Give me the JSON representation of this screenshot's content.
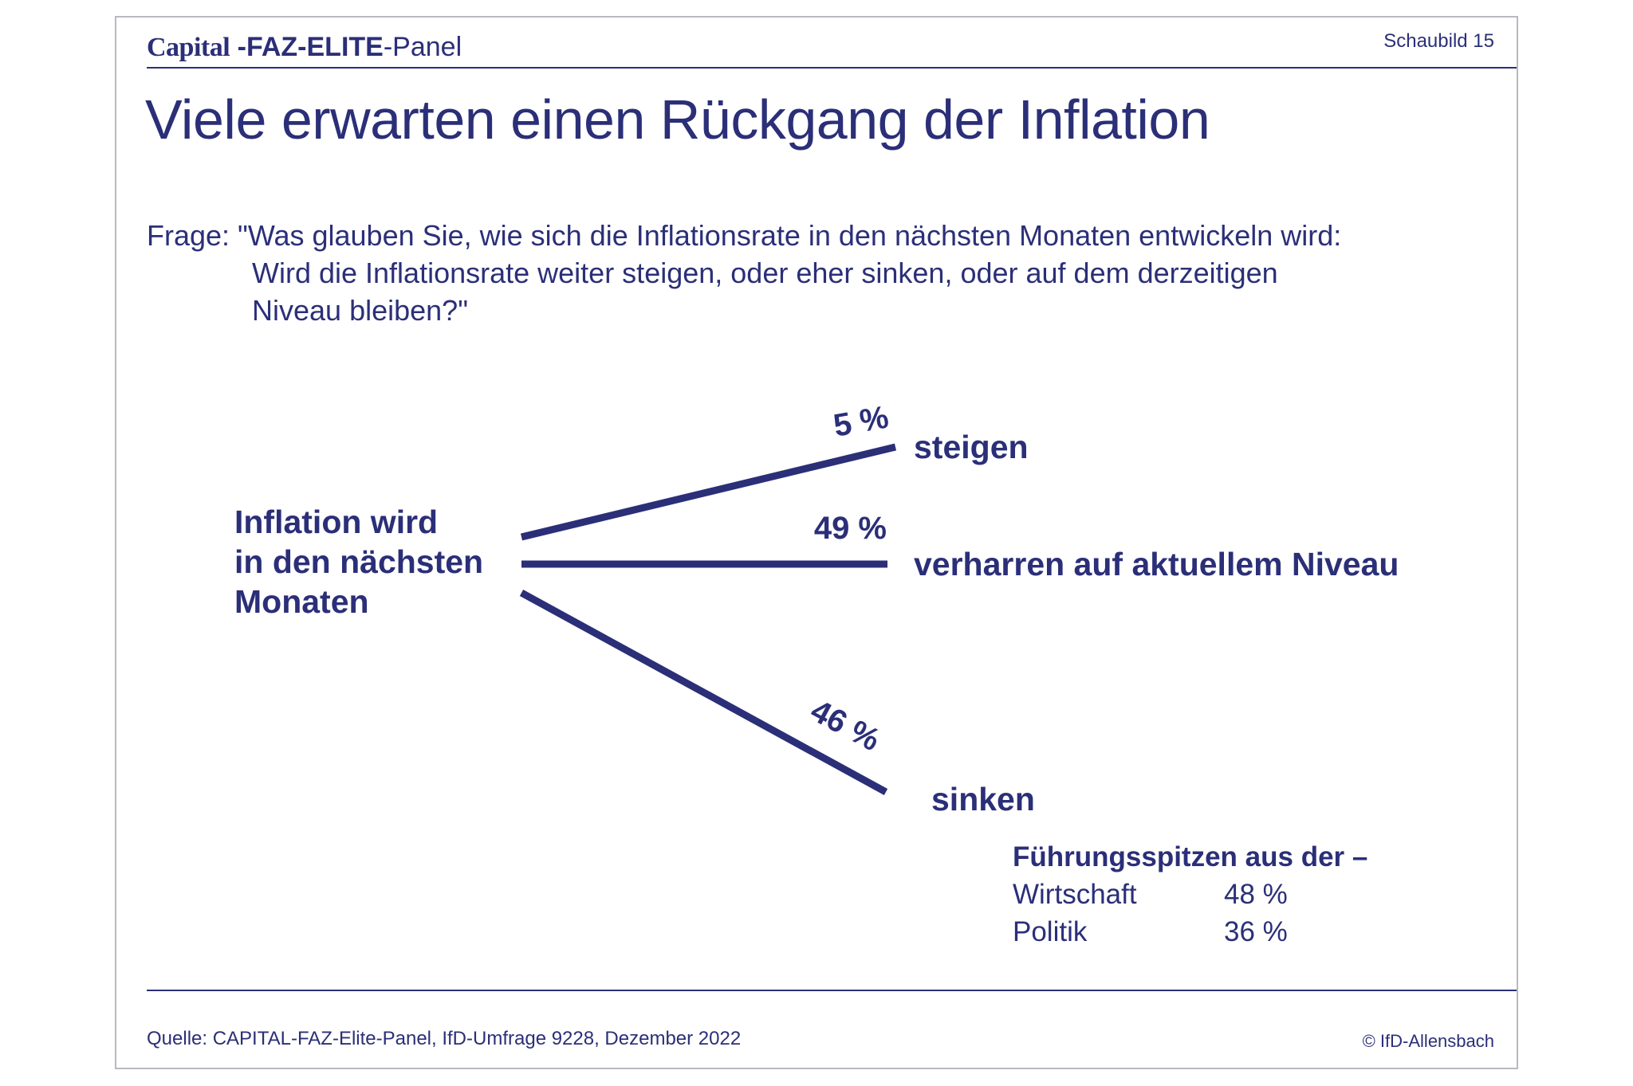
{
  "header": {
    "brand_capital": "Capital",
    "brand_faz": " -FAZ-ELITE",
    "brand_panel": "-Panel",
    "chart_number": "Schaubild 15"
  },
  "title": "Viele erwarten einen Rückgang der Inflation",
  "question": {
    "lines": [
      "Frage: \"Was glauben Sie, wie sich die Inflationsrate in den nächsten Monaten entwickeln wird:",
      "Wird die Inflationsrate weiter steigen, oder eher sinken, oder auf dem derzeitigen",
      "Niveau bleiben?\""
    ]
  },
  "chart_data": {
    "type": "bar",
    "subject_lines": [
      "Inflation wird",
      "in den nächsten",
      "Monaten"
    ],
    "categories": [
      "steigen",
      "verharren auf aktuellem Niveau",
      "sinken"
    ],
    "values": [
      5,
      49,
      46
    ],
    "value_labels": [
      "5 %",
      "49 %",
      "46 %"
    ],
    "unit": "%",
    "breakdown": {
      "heading": "Führungsspitzen aus der –",
      "category": "sinken",
      "rows": [
        {
          "name": "Wirtschaft",
          "value": 48,
          "label": "48 %"
        },
        {
          "name": "Politik",
          "value": 36,
          "label": "36 %"
        }
      ]
    }
  },
  "footer": {
    "source": "Quelle: CAPITAL-FAZ-Elite-Panel, IfD-Umfrage 9228, Dezember 2022",
    "copyright": "© IfD-Allensbach"
  },
  "colors": {
    "accent": "#2b2f78",
    "frame": "#b9b9bf",
    "background": "#ffffff"
  }
}
